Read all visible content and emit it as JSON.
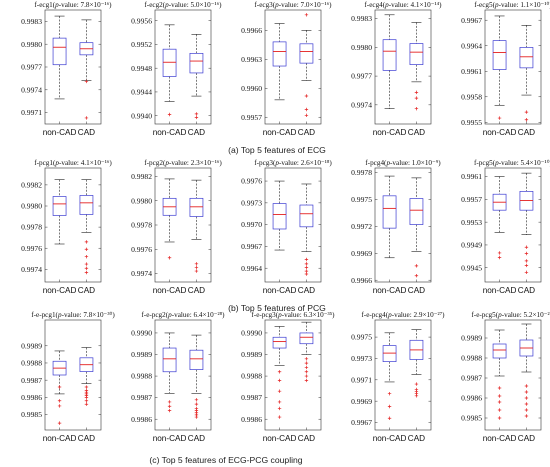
{
  "figure": {
    "row_captions": [
      "(a) Top 5 features of ECG",
      "(b) Top 5 features of PCG",
      "(c) Top 5 features of ECG-PCG coupling"
    ]
  },
  "chart_data": [
    {
      "type": "box",
      "title_prefix": "f-ecg1(",
      "p_label": "p",
      "title_suffix": "-value: 7.8×10⁻¹⁶)",
      "categories": [
        "non-CAD",
        "CAD"
      ],
      "ylim": [
        0.99695,
        0.99845
      ],
      "yticks": [
        0.9971,
        0.9974,
        0.9977,
        0.998,
        0.9983
      ],
      "tick_labels": [
        "0.9971",
        "0.9974",
        "0.9977",
        "0.9980",
        "0.9983"
      ],
      "boxes": [
        {
          "min": 0.99728,
          "q1": 0.99773,
          "median": 0.99796,
          "q3": 0.99808,
          "max": 0.99837,
          "outliers": []
        },
        {
          "min": 0.99752,
          "q1": 0.99786,
          "median": 0.99794,
          "q3": 0.99802,
          "max": 0.99832,
          "outliers": [
            0.99751,
            0.99703
          ]
        }
      ]
    },
    {
      "type": "box",
      "title_prefix": "f-ecg2(",
      "p_label": "p",
      "title_suffix": "-value: 5.0×10⁻¹⁶)",
      "categories": [
        "non-CAD",
        "CAD"
      ],
      "ylim": [
        0.99386,
        0.99578
      ],
      "yticks": [
        0.994,
        0.9944,
        0.9948,
        0.9952,
        0.9956
      ],
      "tick_labels": [
        "0.9940",
        "0.9944",
        "0.9948",
        "0.9952",
        "0.9956"
      ],
      "boxes": [
        {
          "min": 0.99424,
          "q1": 0.99466,
          "median": 0.9949,
          "q3": 0.99512,
          "max": 0.99553,
          "outliers": [
            0.99402
          ]
        },
        {
          "min": 0.99433,
          "q1": 0.99472,
          "median": 0.99492,
          "q3": 0.99505,
          "max": 0.99537,
          "outliers": [
            0.99403,
            0.99397
          ]
        }
      ]
    },
    {
      "type": "box",
      "title_prefix": "f-ecg3(",
      "p_label": "p",
      "title_suffix": "-value: 7.0×10⁻¹⁶)",
      "categories": [
        "non-CAD",
        "CAD"
      ],
      "ylim": [
        0.99563,
        0.99681
      ],
      "yticks": [
        0.9957,
        0.996,
        0.9963,
        0.9966
      ],
      "tick_labels": [
        "0.9957",
        "0.9960",
        "0.9963",
        "0.9966"
      ],
      "boxes": [
        {
          "min": 0.99588,
          "q1": 0.99623,
          "median": 0.99638,
          "q3": 0.99648,
          "max": 0.99667,
          "outliers": []
        },
        {
          "min": 0.99608,
          "q1": 0.99626,
          "median": 0.99638,
          "q3": 0.99646,
          "max": 0.9966,
          "outliers": [
            0.99676,
            0.99592,
            0.99578,
            0.99572
          ]
        }
      ]
    },
    {
      "type": "box",
      "title_prefix": "f-ecg4(",
      "p_label": "p",
      "title_suffix": "-value: 4.1×10⁻¹⁴)",
      "categories": [
        "non-CAD",
        "CAD"
      ],
      "ylim": [
        0.9972,
        0.99839
      ],
      "yticks": [
        0.9974,
        0.9977,
        0.998,
        0.9983
      ],
      "tick_labels": [
        "0.9974",
        "0.9977",
        "0.9980",
        "0.9983"
      ],
      "boxes": [
        {
          "min": 0.99736,
          "q1": 0.99776,
          "median": 0.99796,
          "q3": 0.99808,
          "max": 0.99834,
          "outliers": []
        },
        {
          "min": 0.99764,
          "q1": 0.99782,
          "median": 0.99795,
          "q3": 0.99804,
          "max": 0.99826,
          "outliers": [
            0.99753,
            0.99747,
            0.99736
          ]
        }
      ]
    },
    {
      "type": "box",
      "title_prefix": "f-ecg5(",
      "p_label": "p",
      "title_suffix": "-value: 1.1×10⁻¹⁰)",
      "categories": [
        "non-CAD",
        "CAD"
      ],
      "ylim": [
        0.99548,
        0.99682
      ],
      "yticks": [
        0.9955,
        0.9958,
        0.9961,
        0.9964,
        0.9967
      ],
      "tick_labels": [
        "0.9955",
        "0.9958",
        "0.9961",
        "0.9964",
        "0.9967"
      ],
      "boxes": [
        {
          "min": 0.9957,
          "q1": 0.99612,
          "median": 0.99632,
          "q3": 0.99646,
          "max": 0.99675,
          "outliers": [
            0.99555
          ]
        },
        {
          "min": 0.99582,
          "q1": 0.99614,
          "median": 0.99627,
          "q3": 0.99638,
          "max": 0.99664,
          "outliers": [
            0.99562,
            0.99553
          ]
        }
      ]
    },
    {
      "type": "box",
      "title_prefix": "f-pcg1(",
      "p_label": "p",
      "title_suffix": "-value: 4.1×10⁻¹⁶)",
      "categories": [
        "non-CAD",
        "CAD"
      ],
      "ylim": [
        0.99728,
        0.99836
      ],
      "yticks": [
        0.9974,
        0.9976,
        0.9978,
        0.998,
        0.9982
      ],
      "tick_labels": [
        "0.9974",
        "0.9976",
        "0.9978",
        "0.9980",
        "0.9982"
      ],
      "boxes": [
        {
          "min": 0.99764,
          "q1": 0.99791,
          "median": 0.99802,
          "q3": 0.99809,
          "max": 0.99825,
          "outliers": []
        },
        {
          "min": 0.99775,
          "q1": 0.99792,
          "median": 0.99803,
          "q3": 0.9981,
          "max": 0.99825,
          "outliers": [
            0.99766,
            0.99759,
            0.99752,
            0.99745,
            0.99741,
            0.99737
          ]
        }
      ]
    },
    {
      "type": "box",
      "title_prefix": "f-pcg2(",
      "p_label": "p",
      "title_suffix": "-value: 2.3×10⁻¹⁶)",
      "categories": [
        "non-CAD",
        "CAD"
      ],
      "ylim": [
        0.99733,
        0.99827
      ],
      "yticks": [
        0.9974,
        0.9976,
        0.9978,
        0.998,
        0.9982
      ],
      "tick_labels": [
        "0.9974",
        "0.9976",
        "0.9978",
        "0.9980",
        "0.9982"
      ],
      "boxes": [
        {
          "min": 0.99766,
          "q1": 0.99788,
          "median": 0.99795,
          "q3": 0.99802,
          "max": 0.99818,
          "outliers": [
            0.99753
          ]
        },
        {
          "min": 0.99768,
          "q1": 0.99787,
          "median": 0.99795,
          "q3": 0.99802,
          "max": 0.99817,
          "outliers": [
            0.99748,
            0.99745,
            0.99742
          ]
        }
      ]
    },
    {
      "type": "box",
      "title_prefix": "f-pcg3(",
      "p_label": "p",
      "title_suffix": "-value: 2.6×10⁻¹⁸)",
      "categories": [
        "non-CAD",
        "CAD"
      ],
      "ylim": [
        0.99621,
        0.99778
      ],
      "yticks": [
        0.9964,
        0.9967,
        0.997,
        0.9973,
        0.9976
      ],
      "tick_labels": [
        "0.9964",
        "0.9967",
        "0.9970",
        "0.9973",
        "0.9976"
      ],
      "boxes": [
        {
          "min": 0.99665,
          "q1": 0.99694,
          "median": 0.99714,
          "q3": 0.99729,
          "max": 0.9976,
          "outliers": []
        },
        {
          "min": 0.99663,
          "q1": 0.99697,
          "median": 0.99715,
          "q3": 0.99727,
          "max": 0.99756,
          "outliers": [
            0.99652,
            0.99646,
            0.99641,
            0.99636,
            0.99632
          ]
        }
      ]
    },
    {
      "type": "box",
      "title_prefix": "f-pcg4(",
      "p_label": "p",
      "title_suffix": "-value: 1.0×10⁻⁹)",
      "categories": [
        "non-CAD",
        "CAD"
      ],
      "ylim": [
        0.99658,
        0.99785
      ],
      "yticks": [
        0.9966,
        0.9969,
        0.9972,
        0.9975,
        0.9978
      ],
      "tick_labels": [
        "0.9966",
        "0.9969",
        "0.9972",
        "0.9975",
        "0.9978"
      ],
      "boxes": [
        {
          "min": 0.99685,
          "q1": 0.99718,
          "median": 0.9974,
          "q3": 0.99754,
          "max": 0.99776,
          "outliers": []
        },
        {
          "min": 0.99692,
          "q1": 0.99722,
          "median": 0.99738,
          "q3": 0.99751,
          "max": 0.99774,
          "outliers": [
            0.99676,
            0.99665
          ]
        }
      ]
    },
    {
      "type": "box",
      "title_prefix": "f-pcg5(",
      "p_label": "p",
      "title_suffix": "-value: 5.4×10⁻¹⁰)",
      "categories": [
        "non-CAD",
        "CAD"
      ],
      "ylim": [
        0.99425,
        0.99625
      ],
      "yticks": [
        0.9945,
        0.9949,
        0.9953,
        0.9957,
        0.9961
      ],
      "tick_labels": [
        "0.9945",
        "0.9949",
        "0.9953",
        "0.9957",
        "0.9961"
      ],
      "boxes": [
        {
          "min": 0.99512,
          "q1": 0.99551,
          "median": 0.99565,
          "q3": 0.99579,
          "max": 0.9961,
          "outliers": [
            0.99476,
            0.99468
          ]
        },
        {
          "min": 0.99508,
          "q1": 0.99551,
          "median": 0.99568,
          "q3": 0.99584,
          "max": 0.99616,
          "outliers": [
            0.99486,
            0.99475,
            0.99462,
            0.99454,
            0.99442
          ]
        }
      ]
    },
    {
      "type": "box",
      "title_prefix": "f-e-pcg1(",
      "p_label": "p",
      "title_suffix": "-value: 7.8×10⁻³⁰)",
      "categories": [
        "non-CAD",
        "CAD"
      ],
      "ylim": [
        0.99841,
        0.99905
      ],
      "yticks": [
        0.9985,
        0.9986,
        0.9987,
        0.9988,
        0.9989
      ],
      "tick_labels": [
        "0.9985",
        "0.9986",
        "0.9987",
        "0.9988",
        "0.9989"
      ],
      "boxes": [
        {
          "min": 0.99862,
          "q1": 0.99873,
          "median": 0.99877,
          "q3": 0.99881,
          "max": 0.99887,
          "outliers": [
            0.99866,
            0.99858,
            0.99855,
            0.99845
          ]
        },
        {
          "min": 0.99868,
          "q1": 0.99875,
          "median": 0.99879,
          "q3": 0.99883,
          "max": 0.99889,
          "outliers": [
            0.99866,
            0.99864,
            0.99863,
            0.99862,
            0.99861,
            0.9986,
            0.99858,
            0.99856
          ]
        }
      ]
    },
    {
      "type": "box",
      "title_prefix": "f-e-pcg2(",
      "p_label": "p",
      "title_suffix": "-value: 6.4×10⁻²⁸)",
      "categories": [
        "non-CAD",
        "CAD"
      ],
      "ylim": [
        0.99855,
        0.99906
      ],
      "yticks": [
        0.9986,
        0.9987,
        0.9988,
        0.9989,
        0.999
      ],
      "tick_labels": [
        "0.9986",
        "0.9987",
        "0.9988",
        "0.9989",
        "0.9990"
      ],
      "boxes": [
        {
          "min": 0.99872,
          "q1": 0.99882,
          "median": 0.99888,
          "q3": 0.99893,
          "max": 0.999,
          "outliers": [
            0.99868,
            0.99866,
            0.99864
          ]
        },
        {
          "min": 0.99872,
          "q1": 0.99883,
          "median": 0.99888,
          "q3": 0.99892,
          "max": 0.99899,
          "outliers": [
            0.99869,
            0.99867,
            0.99865,
            0.99864,
            0.99863,
            0.99862,
            0.99861
          ]
        }
      ]
    },
    {
      "type": "box",
      "title_prefix": "f-e-pcg3(",
      "p_label": "p",
      "title_suffix": "-value: 6.3×10⁻³⁵)",
      "categories": [
        "non-CAD",
        "CAD"
      ],
      "ylim": [
        0.99855,
        0.99906
      ],
      "yticks": [
        0.9986,
        0.9987,
        0.9988,
        0.9989,
        0.999
      ],
      "tick_labels": [
        "0.9986",
        "0.9987",
        "0.9988",
        "0.9989",
        "0.9990"
      ],
      "boxes": [
        {
          "min": 0.99885,
          "q1": 0.99893,
          "median": 0.99896,
          "q3": 0.99898,
          "max": 0.99903,
          "outliers": [
            0.99882,
            0.99878,
            0.99873,
            0.99868,
            0.99865,
            0.99861
          ]
        },
        {
          "min": 0.9989,
          "q1": 0.99895,
          "median": 0.99898,
          "q3": 0.999,
          "max": 0.99905,
          "outliers": [
            0.99888,
            0.99886,
            0.99884,
            0.99882,
            0.9988,
            0.99878
          ]
        }
      ]
    },
    {
      "type": "box",
      "title_prefix": "f-e-pcg4(",
      "p_label": "p",
      "title_suffix": "-value: 2.9×10⁻²⁷)",
      "categories": [
        "non-CAD",
        "CAD"
      ],
      "ylim": [
        0.99663,
        0.99766
      ],
      "yticks": [
        0.9967,
        0.9969,
        0.9971,
        0.9973,
        0.9975
      ],
      "tick_labels": [
        "0.9967",
        "0.9969",
        "0.9971",
        "0.9973",
        "0.9975"
      ],
      "boxes": [
        {
          "min": 0.99708,
          "q1": 0.99727,
          "median": 0.99735,
          "q3": 0.99742,
          "max": 0.99754,
          "outliers": [
            0.99697,
            0.99685,
            0.99674
          ]
        },
        {
          "min": 0.99715,
          "q1": 0.99729,
          "median": 0.99738,
          "q3": 0.99747,
          "max": 0.99757,
          "outliers": [
            0.99706,
            0.99701,
            0.99699,
            0.99697,
            0.99695
          ]
        }
      ]
    },
    {
      "type": "box",
      "title_prefix": "f-e-pcg5(",
      "p_label": "p",
      "title_suffix": "-value: 5.2×10⁻²⁵)",
      "categories": [
        "non-CAD",
        "CAD"
      ],
      "ylim": [
        0.99844,
        0.99899
      ],
      "yticks": [
        0.9985,
        0.9986,
        0.9987,
        0.9988,
        0.9989
      ],
      "tick_labels": [
        "0.9985",
        "0.9986",
        "0.9987",
        "0.9988",
        "0.9989"
      ],
      "boxes": [
        {
          "min": 0.99871,
          "q1": 0.9988,
          "median": 0.99884,
          "q3": 0.99887,
          "max": 0.99894,
          "outliers": [
            0.99865,
            0.99861,
            0.99858,
            0.99854,
            0.9985
          ]
        },
        {
          "min": 0.99873,
          "q1": 0.99881,
          "median": 0.99885,
          "q3": 0.99889,
          "max": 0.99897,
          "outliers": [
            0.99866,
            0.99863,
            0.9986,
            0.99857,
            0.99854,
            0.99851
          ]
        }
      ]
    }
  ]
}
